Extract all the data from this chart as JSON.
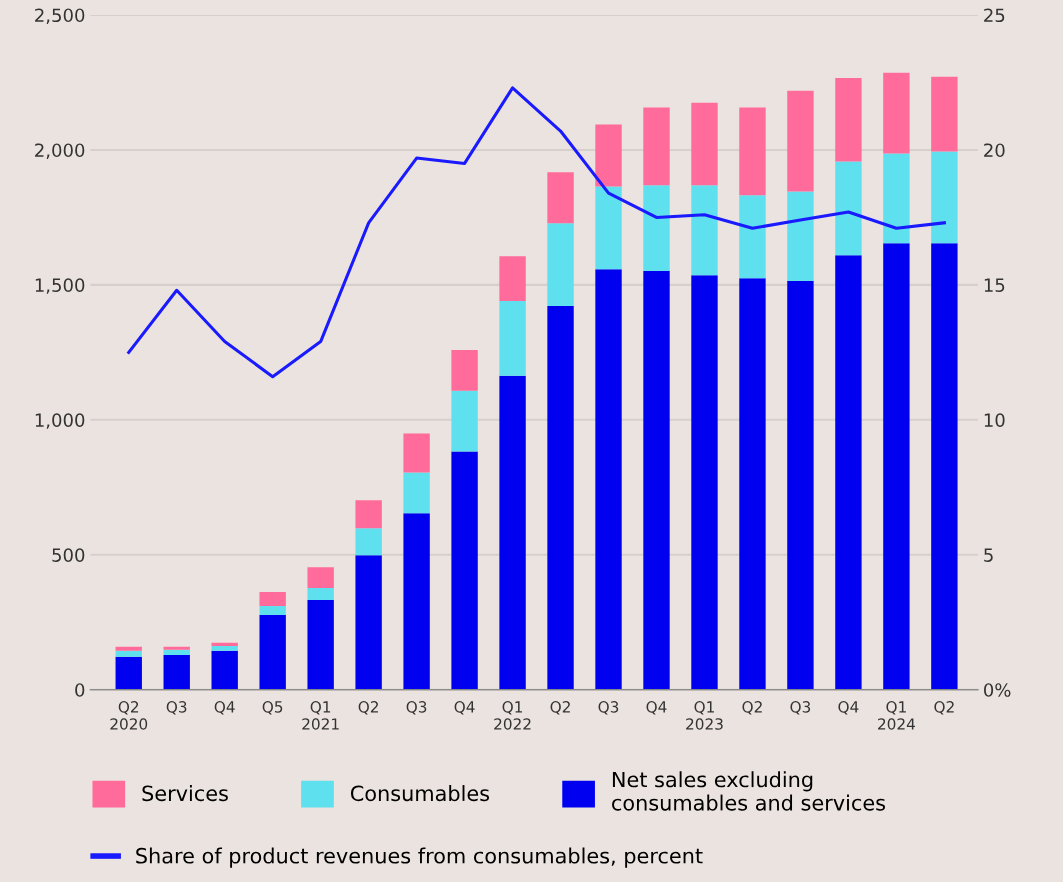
{
  "chart_data": {
    "type": "bar",
    "stacked": true,
    "categories": [
      "Q2\n2020",
      "Q3",
      "Q4",
      "Q5",
      "Q1\n2021",
      "Q2",
      "Q3",
      "Q4",
      "Q1\n2022",
      "Q2",
      "Q3",
      "Q4",
      "Q1\n2023",
      "Q2",
      "Q3",
      "Q4",
      "Q1\n2024",
      "Q2"
    ],
    "series": [
      {
        "name": "Net sales excluding\nconsumables and services",
        "color": "#0000f0",
        "values": [
          122,
          129,
          144,
          277,
          332,
          498,
          654,
          883,
          1163,
          1422,
          1558,
          1551,
          1536,
          1525,
          1514,
          1610,
          1654,
          1654
        ]
      },
      {
        "name": "Consumables",
        "color": "#5ee0ef",
        "values": [
          22,
          19,
          18,
          33,
          45,
          100,
          151,
          225,
          277,
          306,
          307,
          318,
          333,
          307,
          332,
          347,
          333,
          340
        ]
      },
      {
        "name": "Services",
        "color": "#ff6b9a",
        "values": [
          15,
          11,
          12,
          52,
          77,
          104,
          144,
          151,
          166,
          189,
          229,
          288,
          306,
          325,
          373,
          310,
          299,
          277
        ]
      },
      {
        "name": "Share of product revenues from consumables, percent",
        "type": "line",
        "axis": "y2",
        "color": "#1a1aff",
        "values": [
          12.5,
          14.8,
          12.9,
          11.6,
          12.9,
          17.3,
          19.7,
          19.5,
          22.3,
          20.7,
          18.4,
          17.5,
          17.6,
          17.1,
          17.4,
          17.7,
          17.1,
          17.3
        ]
      }
    ],
    "ylim": [
      0,
      2500
    ],
    "yticks": [
      {
        "value": 0,
        "label": "0"
      },
      {
        "value": 500,
        "label": "500"
      },
      {
        "value": 1000,
        "label": "1,000"
      },
      {
        "value": 1500,
        "label": "1,500"
      },
      {
        "value": 2000,
        "label": "2,000"
      },
      {
        "value": 2500,
        "label": "2,500"
      }
    ],
    "y2lim": [
      0,
      25
    ],
    "y2ticks": [
      {
        "value": 0,
        "label": "0%"
      },
      5,
      10,
      15,
      20,
      25
    ],
    "grid": "y",
    "legend": "bottom",
    "marker": "none",
    "line_style": "solid"
  }
}
